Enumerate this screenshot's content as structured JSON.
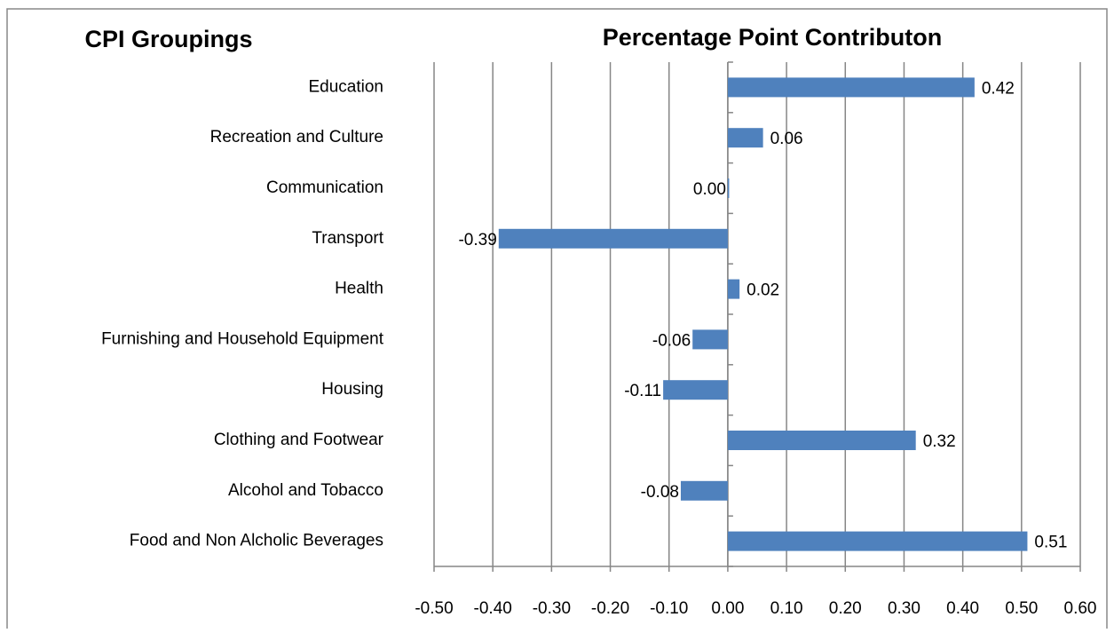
{
  "chart_data": {
    "type": "bar",
    "orientation": "horizontal",
    "left_title": "CPI Groupings",
    "title": "Percentage Point Contributon",
    "categories": [
      "Education",
      "Recreation and Culture",
      "Communication",
      "Transport",
      "Health",
      "Furnishing and Household Equipment",
      "Housing",
      "Clothing and Footwear",
      "Alcohol and Tobacco",
      "Food and Non Alcholic Beverages"
    ],
    "values": [
      0.42,
      0.06,
      0,
      -0.39,
      0.02,
      -0.06,
      -0.11,
      0.32,
      -0.08,
      0.51
    ],
    "value_labels": [
      "0.42",
      "0.06",
      "0.00",
      "-0.39",
      "0.02",
      "-0.06",
      "-0.11",
      "0.32",
      "-0.08",
      "0.51"
    ],
    "color": "#4f81bd",
    "xlim": [
      -0.5,
      0.6
    ],
    "xticks": [
      {
        "value": -0.5,
        "label": "-0.50"
      },
      {
        "value": -0.4,
        "label": "-0.40"
      },
      {
        "value": -0.3,
        "label": "-0.30"
      },
      {
        "value": -0.2,
        "label": "-0.20"
      },
      {
        "value": -0.1,
        "label": "-0.10"
      },
      {
        "value": 0,
        "label": "0.00"
      },
      {
        "value": 0.1,
        "label": "0.10"
      },
      {
        "value": 0.2,
        "label": "0.20"
      },
      {
        "value": 0.3,
        "label": "0.30"
      },
      {
        "value": 0.4,
        "label": "0.40"
      },
      {
        "value": 0.5,
        "label": "0.50"
      },
      {
        "value": 0.6,
        "label": "0.60"
      }
    ],
    "grid": true
  }
}
